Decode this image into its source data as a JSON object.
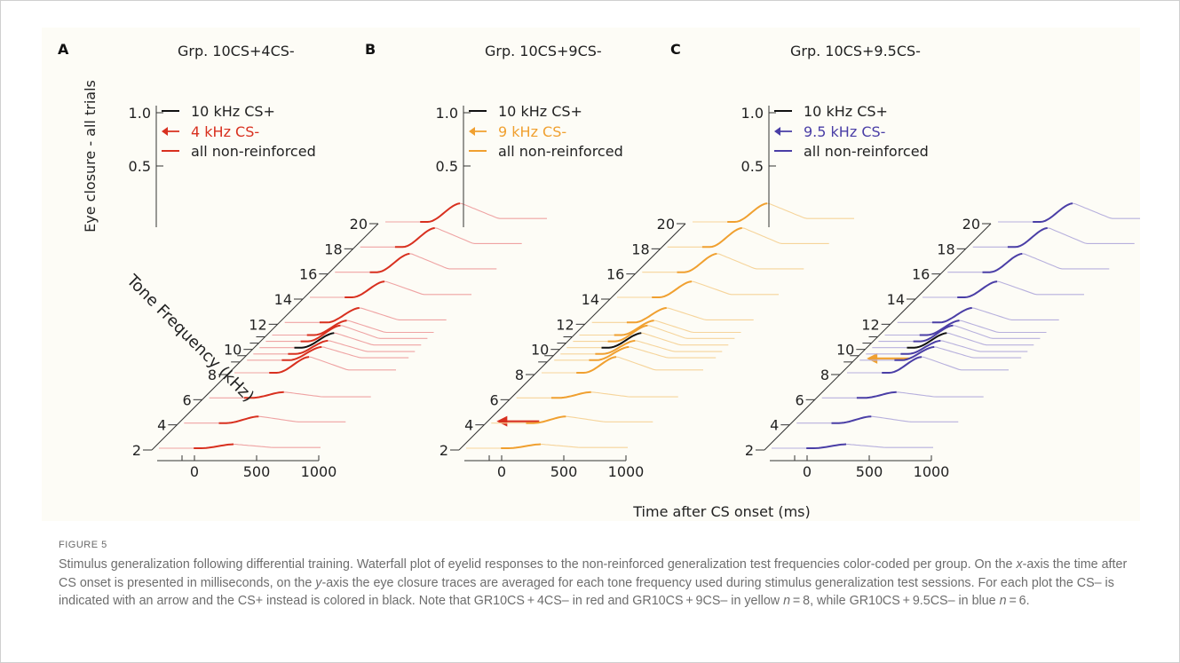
{
  "figure": {
    "caption_label": "FIGURE 5",
    "caption_parts": [
      "Stimulus generalization following differential training. Waterfall plot of eyelid responses to the non-reinforced generalization test frequencies color-coded per group. On the ",
      "x",
      "-axis the time after CS onset is presented in milliseconds, on the ",
      "y",
      "-axis the eye closure traces are averaged for each tone frequency used during stimulus generalization test sessions. For each plot the CS– is indicated with an arrow and the CS+ instead is colored in black. Note that GR10CS + 4CS– in red and GR10CS + 9CS– in yellow ",
      "n",
      " = 8, while GR10CS + 9.5CS– in blue ",
      "n",
      " = 6."
    ]
  },
  "chart_data": {
    "type": "line",
    "shared": {
      "y_axis_label": "Eye closure - all trials",
      "y_ticks": [
        "1.0",
        "0.5"
      ],
      "z_axis_label": "Tone Frequency (kHz)",
      "z_ticks": [
        "20",
        "18",
        "16",
        "14",
        "12",
        "10",
        "8",
        "6",
        "4",
        "2"
      ],
      "x_axis_label": "Time after CS onset (ms)",
      "x_ticks": [
        "0",
        "500",
        "1000"
      ],
      "legend_cs_plus": "10 kHz CS+",
      "legend_all": "all non-reinforced",
      "cs_plus_color": "#111111"
    },
    "panels": [
      {
        "letter": "A",
        "title": "Grp. 10CS+4CS-",
        "cs_minus_label": "4 kHz CS-",
        "cs_minus_khz": 4,
        "color": "#d8301f",
        "light_color": "#efa3a3"
      },
      {
        "letter": "B",
        "title": "Grp. 10CS+9CS-",
        "cs_minus_label": "9 kHz CS-",
        "cs_minus_khz": 9,
        "color": "#f0a030",
        "light_color": "#f6d49a"
      },
      {
        "letter": "C",
        "title": "Grp. 10CS+9.5CS-",
        "cs_minus_label": "9.5 kHz CS-",
        "cs_minus_khz": 9.5,
        "color": "#4a3ea6",
        "light_color": "#b7b0dd"
      }
    ],
    "frequencies_khz": [
      2,
      4,
      6,
      8,
      9,
      9.5,
      10,
      10.5,
      11,
      12,
      14,
      16,
      18,
      20
    ],
    "peak_amplitude": [
      0.15,
      0.25,
      0.22,
      0.6,
      0.5,
      0.5,
      0.55,
      0.6,
      0.55,
      0.55,
      0.6,
      0.7,
      0.72,
      0.7
    ],
    "x_range_ms": [
      -300,
      1000
    ]
  }
}
